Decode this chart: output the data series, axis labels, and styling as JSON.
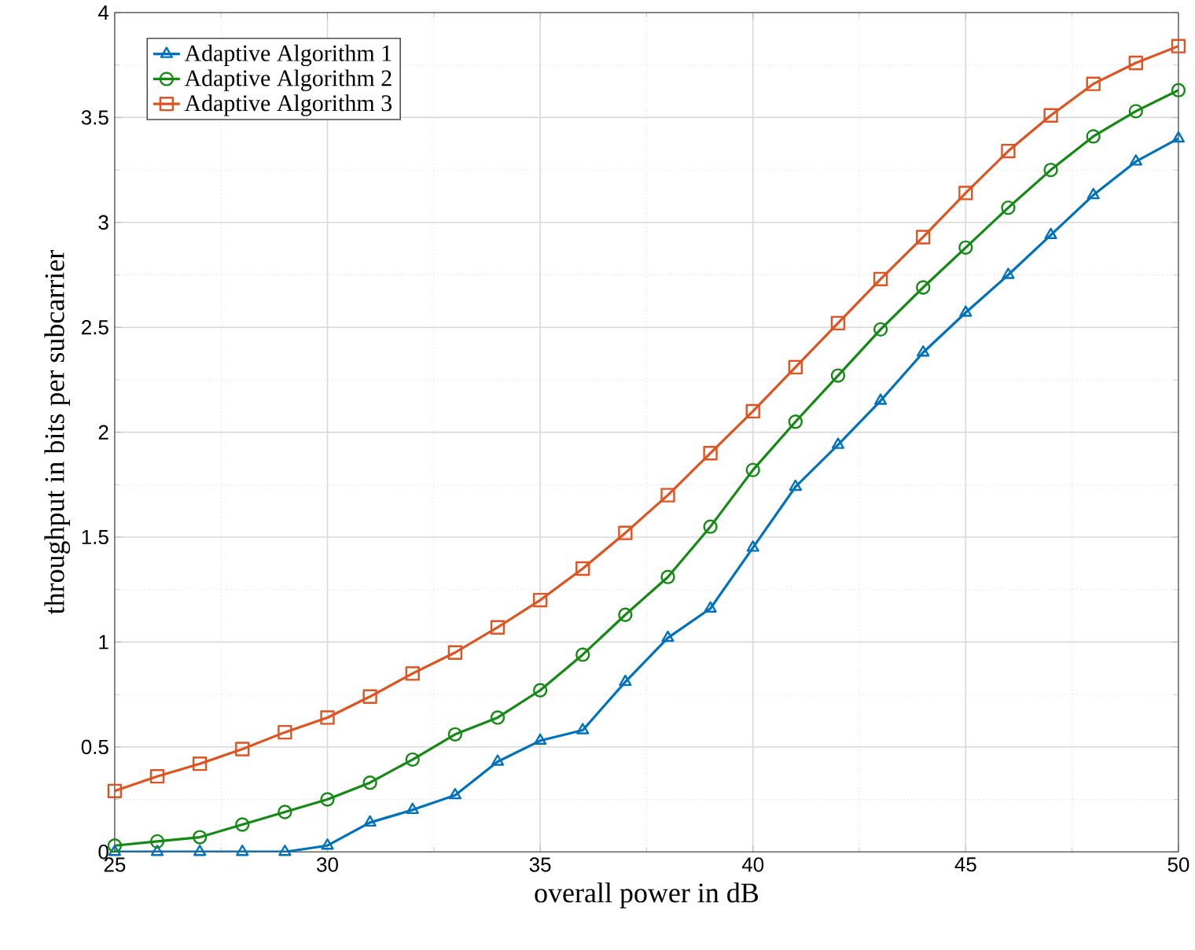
{
  "chart_data": {
    "type": "line",
    "xlabel": "overall power in dB",
    "ylabel": "throughput in bits per subcarrier",
    "x": [
      25,
      26,
      27,
      28,
      29,
      30,
      31,
      32,
      33,
      34,
      35,
      36,
      37,
      38,
      39,
      40,
      41,
      42,
      43,
      44,
      45,
      46,
      47,
      48,
      49,
      50
    ],
    "xlim": [
      25,
      50
    ],
    "xticks": [
      25,
      30,
      35,
      40,
      45,
      50
    ],
    "ylim": [
      0,
      4
    ],
    "yticks": [
      0,
      0.5,
      1,
      1.5,
      2,
      2.5,
      3,
      3.5,
      4
    ],
    "grid": true,
    "legend": "top left",
    "line_style": "solid",
    "series": [
      {
        "name": "Adaptive Algorithm 1",
        "color": "#0072bd",
        "marker": "triangle",
        "values": [
          0,
          0,
          0,
          0,
          0,
          0.03,
          0.14,
          0.2,
          0.27,
          0.43,
          0.53,
          0.58,
          0.81,
          1.02,
          1.16,
          1.45,
          1.74,
          1.94,
          2.15,
          2.38,
          2.57,
          2.75,
          2.94,
          3.13,
          3.29,
          3.4
        ]
      },
      {
        "name": "Adaptive Algorithm 2",
        "color": "#138a13",
        "marker": "circle",
        "values": [
          0.03,
          0.05,
          0.07,
          0.13,
          0.19,
          0.25,
          0.33,
          0.44,
          0.56,
          0.64,
          0.77,
          0.94,
          1.13,
          1.31,
          1.55,
          1.82,
          2.05,
          2.27,
          2.49,
          2.69,
          2.88,
          3.07,
          3.25,
          3.41,
          3.53,
          3.63
        ]
      },
      {
        "name": "Adaptive Algorithm 3",
        "color": "#e0531f",
        "marker": "square",
        "values": [
          0.29,
          0.36,
          0.42,
          0.49,
          0.57,
          0.64,
          0.74,
          0.85,
          0.95,
          1.07,
          1.2,
          1.35,
          1.52,
          1.7,
          1.9,
          2.1,
          2.31,
          2.52,
          2.73,
          2.93,
          3.14,
          3.34,
          3.51,
          3.66,
          3.76,
          3.84
        ]
      }
    ]
  }
}
